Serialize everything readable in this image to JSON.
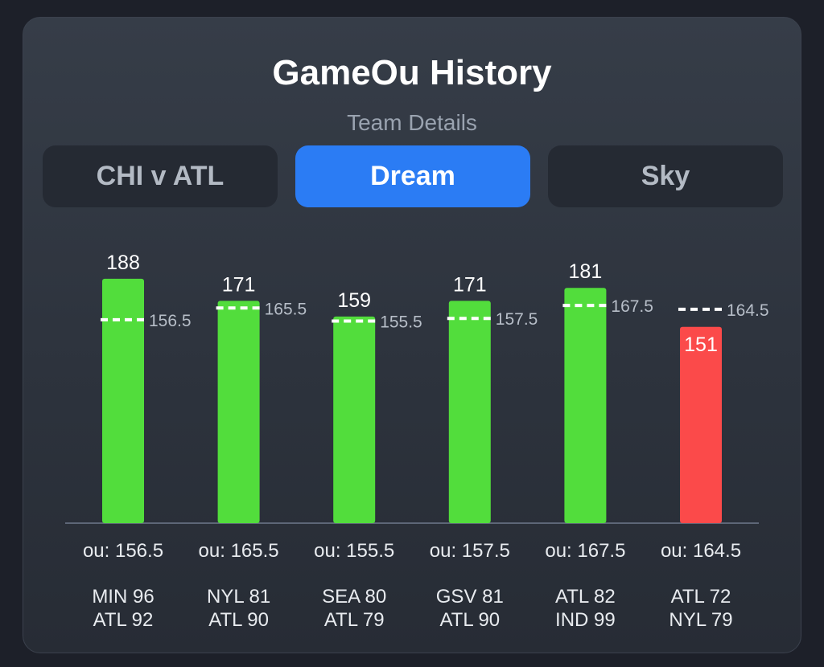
{
  "header": {
    "title": "GameOu History",
    "subtitle": "Team Details"
  },
  "tabs": [
    {
      "label": "CHI v ATL",
      "active": false
    },
    {
      "label": "Dream",
      "active": true
    },
    {
      "label": "Sky",
      "active": false
    }
  ],
  "colors": {
    "over": "#52dd3c",
    "under": "#fb4a4a",
    "active_tab": "#2b7cf4",
    "ou_line": "#ffffff"
  },
  "chart_data": {
    "type": "bar",
    "categories": [
      "MIN 96 / ATL 92",
      "NYL 81 / ATL 90",
      "SEA 80 / ATL 79",
      "GSV 81 / ATL 90",
      "ATL 82 / IND 99",
      "ATL 72 / NYL 79"
    ],
    "values": [
      188,
      171,
      159,
      171,
      181,
      151
    ],
    "ou_lines": [
      156.5,
      165.5,
      155.5,
      157.5,
      167.5,
      164.5
    ],
    "value_labels": [
      "188",
      "171",
      "159",
      "171",
      "181",
      "151"
    ],
    "ou_line_labels": [
      "156.5",
      "165.5",
      "155.5",
      "157.5",
      "167.5",
      "164.5"
    ],
    "ou_labels": [
      "ou: 156.5",
      "ou: 165.5",
      "ou: 155.5",
      "ou: 157.5",
      "ou: 167.5",
      "ou: 164.5"
    ],
    "games": [
      [
        "MIN 96",
        "ATL 92"
      ],
      [
        "NYL 81",
        "ATL 90"
      ],
      [
        "SEA 80",
        "ATL 79"
      ],
      [
        "GSV 81",
        "ATL 90"
      ],
      [
        "ATL 82",
        "IND 99"
      ],
      [
        "ATL 72",
        "NYL 79"
      ]
    ],
    "bar_colors": [
      "over",
      "over",
      "over",
      "over",
      "over",
      "under"
    ],
    "grid": false,
    "legend": "none"
  }
}
